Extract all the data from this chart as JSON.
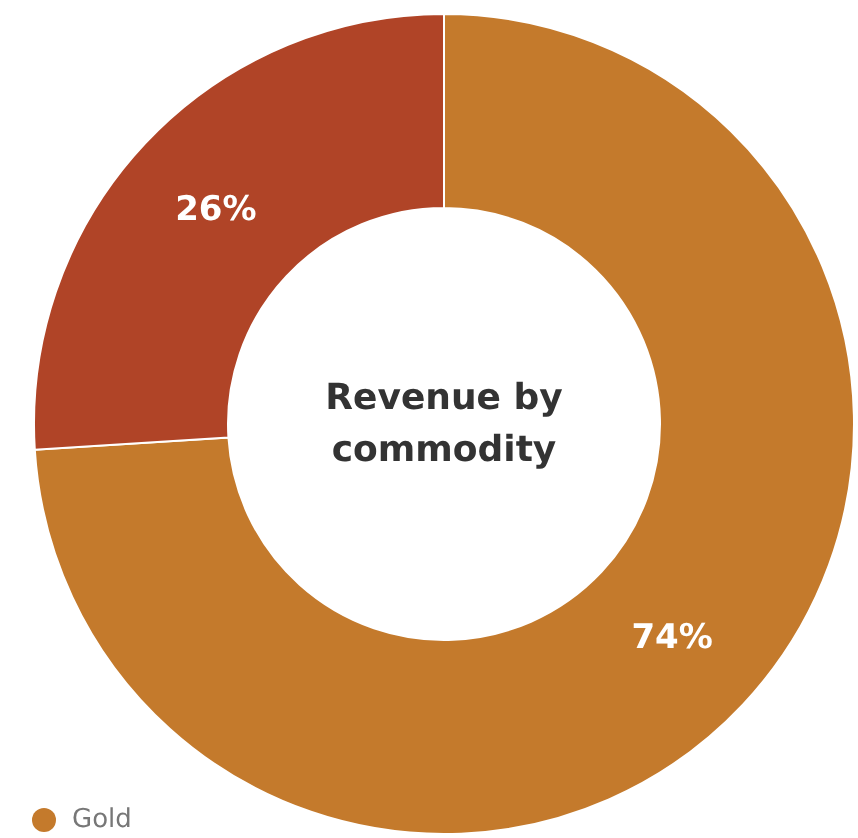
{
  "chart_data": {
    "type": "donut",
    "title": "Revenue by commodity",
    "categories": [
      "Gold",
      null
    ],
    "values": [
      74,
      26
    ],
    "colors": [
      "#c47a2c",
      "#b04427"
    ],
    "value_labels": [
      "74%",
      "26%"
    ],
    "legend": "bottom left"
  }
}
